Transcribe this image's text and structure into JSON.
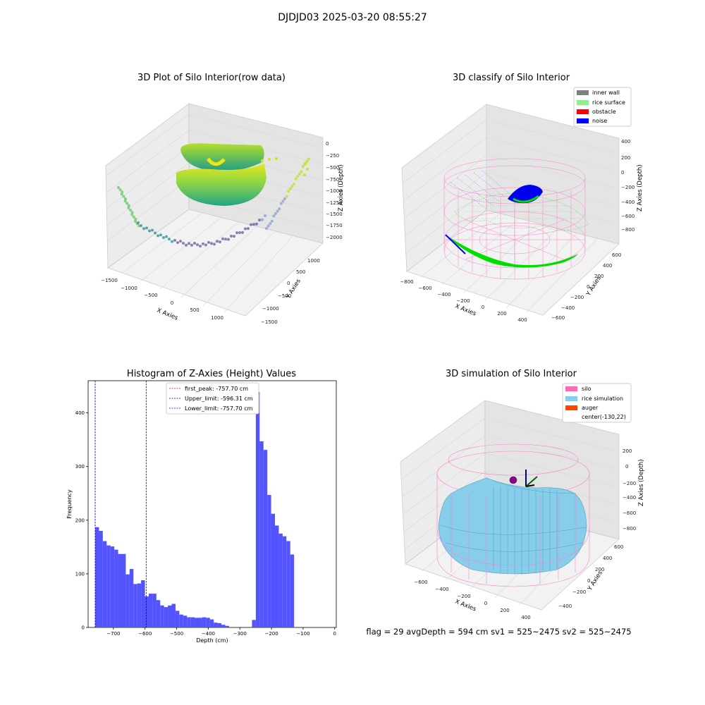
{
  "suptitle": "DJDJD03 2025-03-20 08:55:27",
  "footer": "flag = 29  avgDepth = 594 cm  sv1 = 525~2475  sv2 = 525~2475",
  "panel1": {
    "title": "3D Plot of Silo Interior(row data)",
    "xlabel": "X Axies",
    "ylabel": "Y Axies",
    "zlabel": "Z Axies (Depth)",
    "xticks": [
      "−1500",
      "−1000",
      "−500",
      "0",
      "500",
      "1000"
    ],
    "yticks": [
      "−1500",
      "−1000",
      "−500",
      "0",
      "500",
      "1000"
    ],
    "zticks": [
      "0",
      "−250",
      "−500",
      "−750",
      "−1000",
      "−1250",
      "−1500",
      "−1750",
      "−2000"
    ]
  },
  "panel2": {
    "title": "3D classify of Silo Interior",
    "xlabel": "X Axies",
    "ylabel": "Y Axies",
    "zlabel": "Z Axies (Depth)",
    "xticks": [
      "−800",
      "−600",
      "−400",
      "−200",
      "0",
      "200",
      "400"
    ],
    "yticks": [
      "−600",
      "−400",
      "−200",
      "0",
      "200",
      "400",
      "600"
    ],
    "zticks": [
      "400",
      "200",
      "0",
      "−200",
      "−400",
      "−600",
      "−800"
    ],
    "legend": [
      {
        "label": "inner wall",
        "color": "#808080"
      },
      {
        "label": "rice surface",
        "color": "#90ee90"
      },
      {
        "label": "obstacle",
        "color": "#ff0000"
      },
      {
        "label": "noise",
        "color": "#0000ff"
      }
    ]
  },
  "panel4": {
    "title": "3D simulation of Silo Interior",
    "xlabel": "X Axies",
    "ylabel": "Y Axies",
    "zlabel": "Z Axies (Depth)",
    "xticks": [
      "−600",
      "−400",
      "−200",
      "0",
      "200",
      "400"
    ],
    "yticks": [
      "−400",
      "−200",
      "0",
      "200",
      "400",
      "600"
    ],
    "zticks": [
      "200",
      "0",
      "−200",
      "−400",
      "−600",
      "−800"
    ],
    "legend": [
      {
        "label": "silo",
        "color": "#ff69b4"
      },
      {
        "label": "rice simulation",
        "color": "#87ceeb"
      },
      {
        "label": "auger",
        "color": "#ff4500"
      },
      {
        "label": "center(-130,22)",
        "color": "none"
      }
    ]
  },
  "chart_data": [
    {
      "type": "histogram",
      "title": "Histogram of Z-Axies (Height) Values",
      "xlabel": "Depth (cm)",
      "ylabel": "Frequency",
      "xlim": [
        -780,
        5
      ],
      "ylim": [
        0,
        460
      ],
      "xticks": [
        -700,
        -600,
        -500,
        -400,
        -300,
        -200,
        -100,
        0
      ],
      "yticks": [
        0,
        100,
        200,
        300,
        400
      ],
      "bar_color": "#4b4bff",
      "bin_start": -757.7,
      "bin_width": 12.1,
      "counts": [
        187,
        180,
        161,
        153,
        151,
        145,
        137,
        137,
        99,
        109,
        81,
        82,
        88,
        58,
        63,
        63,
        51,
        41,
        38,
        41,
        44,
        31,
        24,
        22,
        19,
        19,
        18,
        18,
        19,
        18,
        15,
        9,
        8,
        5,
        3,
        0,
        0,
        0,
        0,
        0,
        0,
        14,
        439,
        347,
        331,
        247,
        212,
        190,
        175,
        170,
        161,
        136
      ],
      "vlines": [
        {
          "label": "first_peak: -757.70 cm",
          "x": -757.7,
          "color": "#ff0000"
        },
        {
          "label": "Upper_limit: -596.31 cm",
          "x": -596.31,
          "color": "#00008b"
        },
        {
          "label": "Lower_limit: -757.70 cm",
          "x": -757.7,
          "color": "#0000ff"
        }
      ]
    }
  ]
}
